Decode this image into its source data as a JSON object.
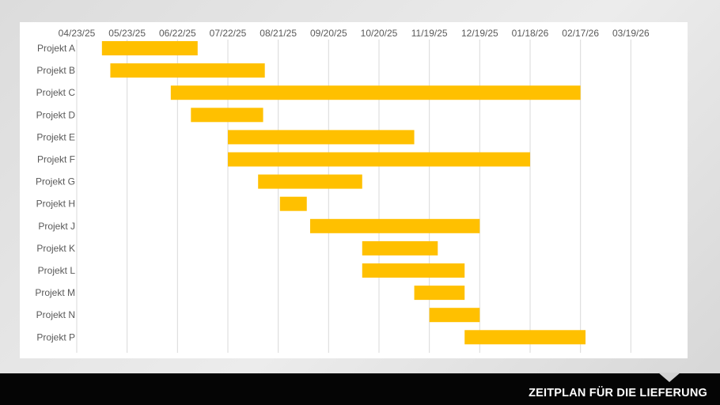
{
  "chart_data": {
    "type": "gantt",
    "title": "",
    "xlabel": "",
    "ylabel": "",
    "grid": true,
    "bar_color": "#FFC000",
    "x_axis_position": "top",
    "xlim": [
      "2025-04-23",
      "2026-04-18"
    ],
    "x_ticks": [
      "2025-04-23",
      "2025-05-23",
      "2025-06-22",
      "2025-07-22",
      "2025-08-21",
      "2025-09-20",
      "2025-10-20",
      "2025-11-19",
      "2025-12-19",
      "2026-01-18",
      "2026-02-17",
      "2026-03-19"
    ],
    "x_tick_labels": [
      "04/23/25",
      "05/23/25",
      "06/22/25",
      "07/22/25",
      "08/21/25",
      "09/20/25",
      "10/20/25",
      "11/19/25",
      "12/19/25",
      "01/18/26",
      "02/17/26",
      "03/19/26"
    ],
    "tasks": [
      {
        "name": "Projekt A",
        "start": "2025-05-08",
        "end": "2025-07-04"
      },
      {
        "name": "Projekt B",
        "start": "2025-05-13",
        "end": "2025-08-13"
      },
      {
        "name": "Projekt C",
        "start": "2025-06-18",
        "end": "2026-02-17"
      },
      {
        "name": "Projekt D",
        "start": "2025-06-30",
        "end": "2025-08-12"
      },
      {
        "name": "Projekt E",
        "start": "2025-07-22",
        "end": "2025-11-10"
      },
      {
        "name": "Projekt F",
        "start": "2025-07-22",
        "end": "2026-01-18"
      },
      {
        "name": "Projekt G",
        "start": "2025-08-09",
        "end": "2025-10-10"
      },
      {
        "name": "Projekt H",
        "start": "2025-08-22",
        "end": "2025-09-07"
      },
      {
        "name": "Projekt J",
        "start": "2025-09-09",
        "end": "2025-12-19"
      },
      {
        "name": "Projekt K",
        "start": "2025-10-10",
        "end": "2025-11-24"
      },
      {
        "name": "Projekt L",
        "start": "2025-10-10",
        "end": "2025-12-10"
      },
      {
        "name": "Projekt M",
        "start": "2025-11-10",
        "end": "2025-12-10"
      },
      {
        "name": "Projekt N",
        "start": "2025-11-19",
        "end": "2025-12-19"
      },
      {
        "name": "Projekt P",
        "start": "2025-12-10",
        "end": "2026-02-20"
      }
    ]
  },
  "footer": {
    "title": "ZEITPLAN FÜR DIE LIEFERUNG"
  }
}
